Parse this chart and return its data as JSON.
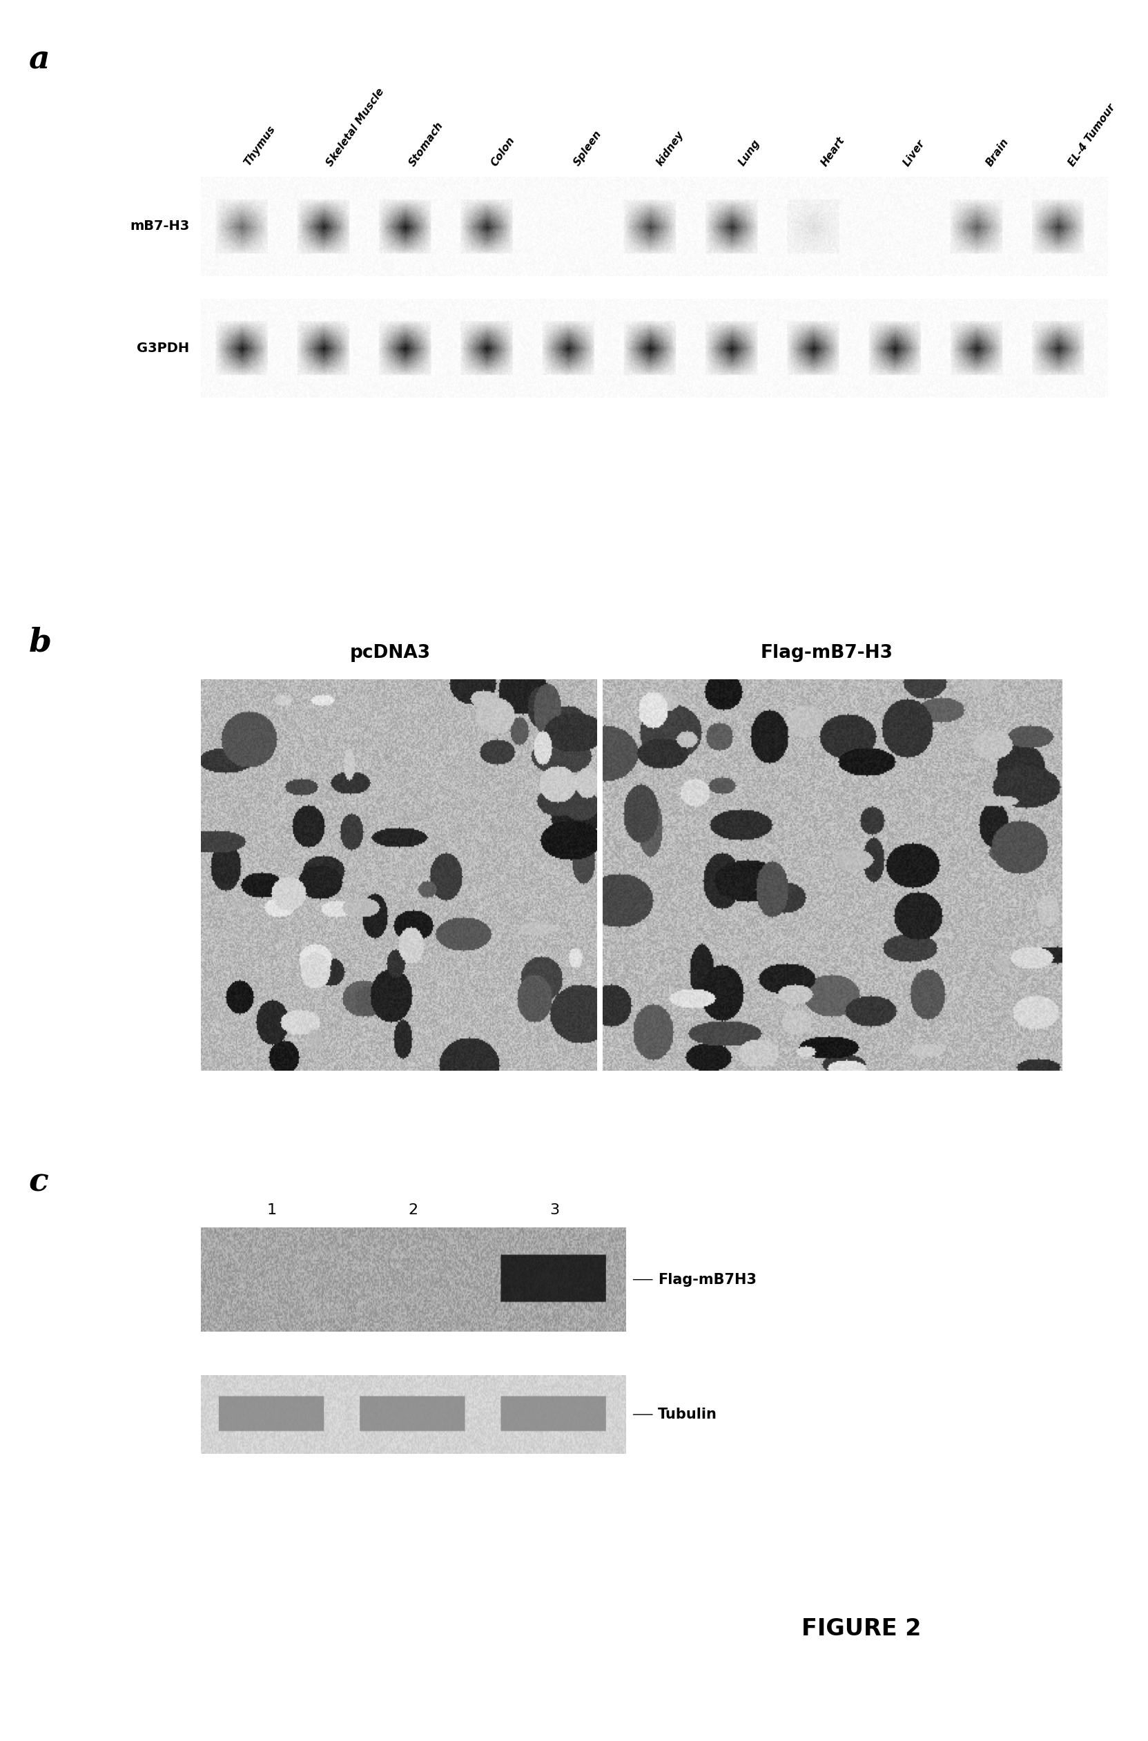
{
  "fig_width": 16.63,
  "fig_height": 25.22,
  "bg_color": "#ffffff",
  "panel_a": {
    "label": "a",
    "col_labels": [
      "Thymus",
      "Skeletal Muscle",
      "Stomach",
      "Colon",
      "Spleen",
      "kidney",
      "Lung",
      "Heart",
      "Liver",
      "Brain",
      "EL-4 Tumour"
    ],
    "mB7H3_bands": [
      0.55,
      0.85,
      0.88,
      0.82,
      0.0,
      0.72,
      0.8,
      0.08,
      0.0,
      0.6,
      0.75
    ],
    "G3PDH_bands": [
      0.88,
      0.88,
      0.9,
      0.88,
      0.86,
      0.9,
      0.88,
      0.88,
      0.88,
      0.86,
      0.82
    ]
  },
  "panel_b": {
    "label": "b",
    "title_left": "pcDNA3",
    "title_right": "Flag-mB7-H3"
  },
  "panel_c": {
    "label": "c",
    "lane_numbers": [
      "1",
      "2",
      "3"
    ],
    "band1_label": "Flag-mB7H3",
    "band2_label": "Tubulin"
  },
  "figure_label": "FIGURE 2"
}
